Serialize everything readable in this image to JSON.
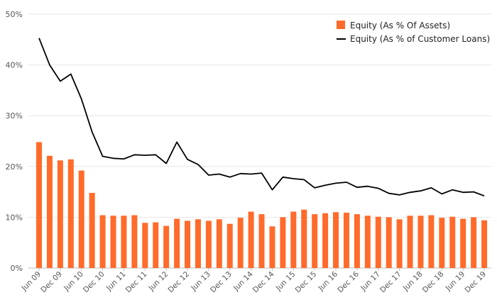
{
  "chart_data": {
    "type": "bar+line",
    "title": "",
    "xlabel": "",
    "ylabel": "",
    "ylim": [
      0,
      50
    ],
    "yticks": [
      0,
      10,
      20,
      30,
      40,
      50
    ],
    "ytick_labels": [
      "0%",
      "10%",
      "20%",
      "30%",
      "40%",
      "50%"
    ],
    "grid": "horizontal",
    "legend_position": "top-right",
    "x": [
      "Jun 09",
      "Sep 09",
      "Dec 09",
      "Mar 10",
      "Jun 10",
      "Sep 10",
      "Dec 10",
      "Mar 11",
      "Jun 11",
      "Sep 11",
      "Dec 11",
      "Mar 12",
      "Jun 12",
      "Sep 12",
      "Dec 12",
      "Mar 13",
      "Jun 13",
      "Sep 13",
      "Dec 13",
      "Mar 14",
      "Jun 14",
      "Sep 14",
      "Dec 14",
      "Mar 15",
      "Jun 15",
      "Sep 15",
      "Dec 15",
      "Mar 16",
      "Jun 16",
      "Sep 16",
      "Dec 16",
      "Mar 17",
      "Jun 17",
      "Sep 17",
      "Dec 17",
      "Mar 18",
      "Jun 18",
      "Sep 18",
      "Dec 18",
      "Mar 19",
      "Jun 19",
      "Sep 19",
      "Dec 19"
    ],
    "x_tick_labels": [
      "Jun 09",
      "Dec 09",
      "Jun 10",
      "Dec 10",
      "Jun 11",
      "Dec 11",
      "Jun 12",
      "Dec 12",
      "Jun 13",
      "Dec 13",
      "Jun 14",
      "Dec 14",
      "Jun 15",
      "Dec 15",
      "Jun 16",
      "Dec 16",
      "Jun 17",
      "Dec 17",
      "Jun 18",
      "Dec 18",
      "Jun 19",
      "Dec 19"
    ],
    "series": [
      {
        "name": "Equity (As % Of Assets)",
        "type": "bar",
        "color": "#ff6b2b",
        "values": [
          24.8,
          22.1,
          21.2,
          21.4,
          19.2,
          14.8,
          10.4,
          10.3,
          10.3,
          10.4,
          8.9,
          9.0,
          8.3,
          9.7,
          9.3,
          9.6,
          9.3,
          9.6,
          8.7,
          9.9,
          11.1,
          10.6,
          8.2,
          10.0,
          11.1,
          11.5,
          10.6,
          10.8,
          11.0,
          10.9,
          10.6,
          10.3,
          10.1,
          10.0,
          9.6,
          10.3,
          10.3,
          10.4,
          9.9,
          10.1,
          9.7,
          10.0,
          9.4
        ]
      },
      {
        "name": "Equity (As % of Customer Loans)",
        "type": "line",
        "color": "#000000",
        "values": [
          45.3,
          40.0,
          36.8,
          38.2,
          33.3,
          26.8,
          22.0,
          21.6,
          21.5,
          22.3,
          22.2,
          22.3,
          20.6,
          24.8,
          21.4,
          20.4,
          18.3,
          18.5,
          17.9,
          18.6,
          18.5,
          18.7,
          15.4,
          17.9,
          17.6,
          17.4,
          15.8,
          16.3,
          16.7,
          16.9,
          15.9,
          16.1,
          15.7,
          14.7,
          14.4,
          14.9,
          15.2,
          15.8,
          14.6,
          15.4,
          14.9,
          15.0,
          14.2
        ]
      }
    ]
  }
}
